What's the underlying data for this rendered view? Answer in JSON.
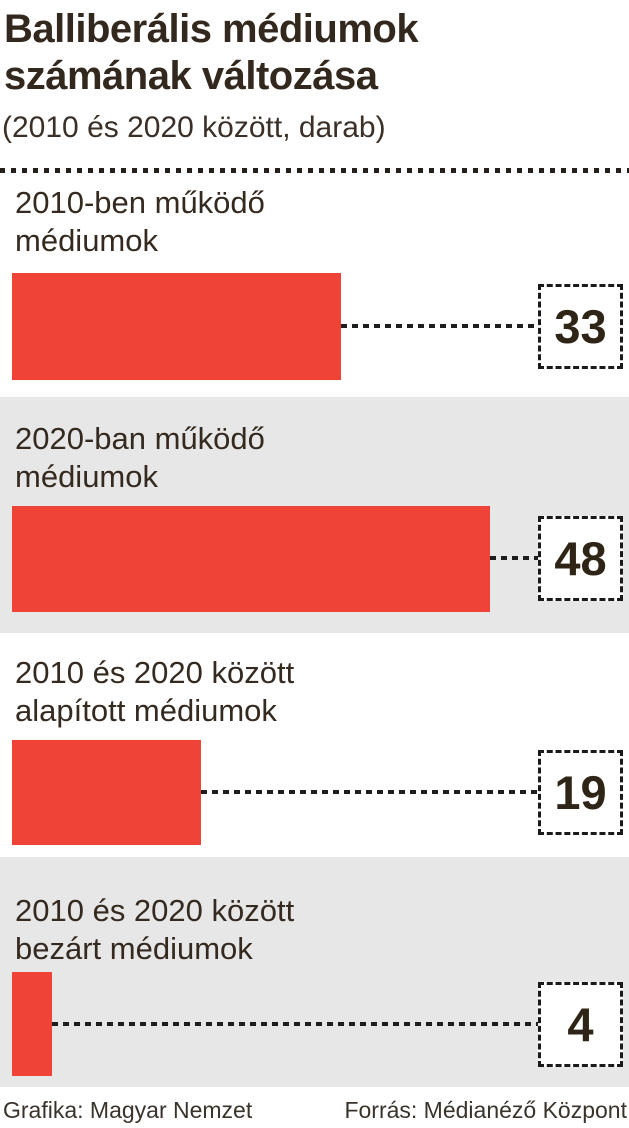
{
  "header": {
    "title_line1": "Balliberális médiumok",
    "title_line2": "számának változása",
    "subtitle": "(2010 és 2020 között, darab)"
  },
  "chart_data": {
    "type": "bar",
    "orientation": "horizontal",
    "title": "Balliberális médiumok számának változása",
    "subtitle": "(2010 és 2020 között, darab)",
    "unit": "darab",
    "categories": [
      "2010-ben működő médiumok",
      "2020-ban működő médiumok",
      "2010 és 2020 között alapított médiumok",
      "2010 és 2020 között bezárt médiumok"
    ],
    "values": [
      33,
      48,
      19,
      4
    ],
    "xlim": [
      0,
      48
    ],
    "value_labels_in_dashed_boxes": true,
    "bar_color": "#ee4336",
    "alt_row_background": "#e7e7e7",
    "text_color": "#33281e"
  },
  "rows": [
    {
      "label_lines": [
        "2010-ben működő",
        "médiumok"
      ],
      "value": "33"
    },
    {
      "label_lines": [
        "2020-ban működő",
        "médiumok"
      ],
      "value": "48"
    },
    {
      "label_lines": [
        "2010 és 2020 között",
        "alapított médiumok"
      ],
      "value": "19"
    },
    {
      "label_lines": [
        "2010 és 2020 között",
        "bezárt médiumok"
      ],
      "value": "4"
    }
  ],
  "footer": {
    "credit": "Grafika: Magyar Nemzet",
    "source": "Forrás: Médianéző Központ"
  }
}
